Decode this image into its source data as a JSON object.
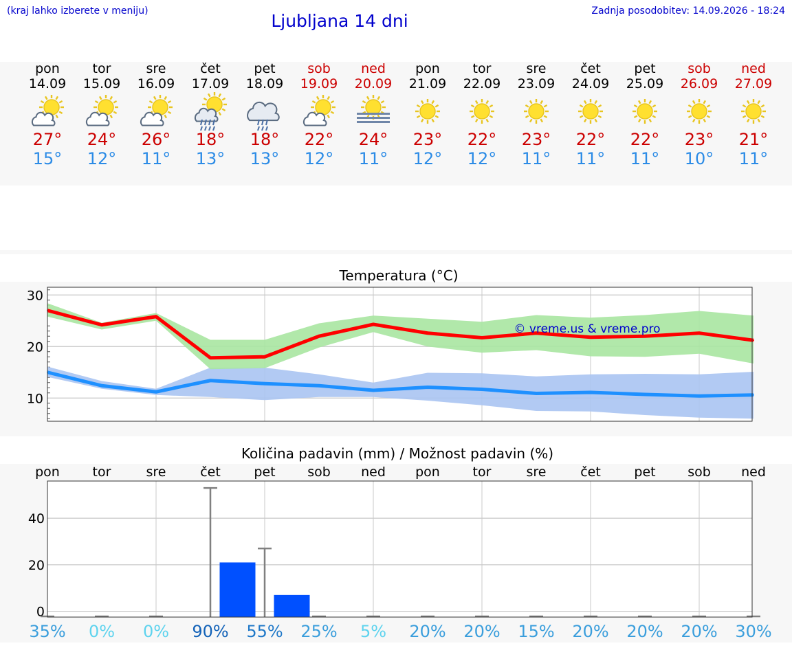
{
  "header": {
    "left_note": "(kraj lahko izberete v meniju)",
    "title": "Ljubljana 14 dni",
    "updated": "Zadnja posodobitev: 14.09.2026 - 18:24"
  },
  "colors": {
    "link_blue": "#0000cc",
    "weekend_red": "#cc0000",
    "tmax_red": "#cc0000",
    "tmin_blue": "#2b8be6",
    "max_line": "#ff0000",
    "max_band": "#a8e6a1",
    "min_line": "#1e90ff",
    "min_band": "#aac4f2",
    "rain_bar": "#0050ff"
  },
  "days": [
    {
      "name": "pon",
      "date": "14.09",
      "weekend": false,
      "icon": "partly-cloudy-icon",
      "tmax": "27°",
      "tmin": "15°"
    },
    {
      "name": "tor",
      "date": "15.09",
      "weekend": false,
      "icon": "partly-cloudy-icon",
      "tmax": "24°",
      "tmin": "12°"
    },
    {
      "name": "sre",
      "date": "16.09",
      "weekend": false,
      "icon": "partly-cloudy-icon",
      "tmax": "26°",
      "tmin": "11°"
    },
    {
      "name": "čet",
      "date": "17.09",
      "weekend": false,
      "icon": "sun-rain-icon",
      "tmax": "18°",
      "tmin": "13°"
    },
    {
      "name": "pet",
      "date": "18.09",
      "weekend": false,
      "icon": "cloud-rain-icon",
      "tmax": "18°",
      "tmin": "13°"
    },
    {
      "name": "sob",
      "date": "19.09",
      "weekend": true,
      "icon": "partly-cloudy-icon",
      "tmax": "22°",
      "tmin": "12°"
    },
    {
      "name": "ned",
      "date": "20.09",
      "weekend": true,
      "icon": "sun-fog-icon",
      "tmax": "24°",
      "tmin": "11°"
    },
    {
      "name": "pon",
      "date": "21.09",
      "weekend": false,
      "icon": "sun-icon",
      "tmax": "23°",
      "tmin": "12°"
    },
    {
      "name": "tor",
      "date": "22.09",
      "weekend": false,
      "icon": "sun-icon",
      "tmax": "22°",
      "tmin": "12°"
    },
    {
      "name": "sre",
      "date": "23.09",
      "weekend": false,
      "icon": "sun-icon",
      "tmax": "23°",
      "tmin": "11°"
    },
    {
      "name": "čet",
      "date": "24.09",
      "weekend": false,
      "icon": "sun-icon",
      "tmax": "22°",
      "tmin": "11°"
    },
    {
      "name": "pet",
      "date": "25.09",
      "weekend": false,
      "icon": "sun-icon",
      "tmax": "22°",
      "tmin": "11°"
    },
    {
      "name": "sob",
      "date": "26.09",
      "weekend": true,
      "icon": "sun-icon",
      "tmax": "23°",
      "tmin": "10°"
    },
    {
      "name": "ned",
      "date": "27.09",
      "weekend": true,
      "icon": "sun-icon",
      "tmax": "21°",
      "tmin": "11°"
    }
  ],
  "chart_data": [
    {
      "type": "line",
      "title": "Temperatura (°C)",
      "watermark": "© vreme.us & vreme.pro",
      "ylim": [
        5.5,
        31.5
      ],
      "yticks": [
        10,
        20,
        30
      ],
      "grid": true,
      "x": [
        "pon",
        "tor",
        "sre",
        "čet",
        "pet",
        "sob",
        "ned",
        "pon",
        "tor",
        "sre",
        "čet",
        "pet",
        "sob",
        "ned"
      ],
      "series": [
        {
          "values": [
            27,
            24.2,
            25.8,
            17.8,
            18,
            22,
            24.3,
            22.6,
            21.7,
            22.6,
            21.8,
            22,
            22.6,
            21.2
          ],
          "band_low": [
            25.8,
            23.3,
            25,
            15.6,
            15.8,
            19.8,
            22.8,
            20,
            18.8,
            19.3,
            18.1,
            18,
            18.6,
            16.7
          ],
          "band_high": [
            28.4,
            24.6,
            26.5,
            21.3,
            21.3,
            24.5,
            26,
            25.4,
            24.8,
            26.1,
            25.6,
            26.1,
            26.9,
            26
          ]
        },
        {
          "values": [
            15,
            12.4,
            11.2,
            13.4,
            12.8,
            12.4,
            11.5,
            12.1,
            11.7,
            10.9,
            11.1,
            10.7,
            10.4,
            10.6
          ],
          "band_low": [
            14.1,
            11.8,
            10.6,
            10.2,
            9.6,
            10.2,
            10.2,
            9.5,
            8.6,
            7.5,
            7.4,
            6.7,
            6.2,
            6
          ],
          "band_high": [
            16.1,
            13.3,
            11.8,
            15.9,
            15.9,
            14.6,
            13,
            14.9,
            14.8,
            14.2,
            14.6,
            14.7,
            14.6,
            15.1
          ]
        }
      ]
    },
    {
      "type": "bar",
      "title": "Količina padavin (mm) / Možnost padavin (%)",
      "categories": [
        "pon",
        "tor",
        "sre",
        "čet",
        "pet",
        "sob",
        "ned",
        "pon",
        "tor",
        "sre",
        "čet",
        "pet",
        "sob",
        "ned"
      ],
      "ylim": [
        -2.5,
        56
      ],
      "yticks": [
        0,
        20,
        40
      ],
      "grid": true,
      "values": [
        0,
        0,
        0,
        21,
        7,
        0,
        0,
        0,
        0,
        0,
        0,
        0,
        0,
        0
      ],
      "error_high": [
        0,
        0,
        0,
        53,
        27,
        0,
        0,
        0,
        0,
        0,
        0,
        0,
        0,
        0
      ],
      "probability": [
        "35%",
        "0%",
        "0%",
        "90%",
        "55%",
        "25%",
        "5%",
        "20%",
        "20%",
        "15%",
        "20%",
        "20%",
        "20%",
        "30%"
      ],
      "probability_colors": [
        "#3a9edc",
        "#5ed3ee",
        "#5ed3ee",
        "#1262b8",
        "#1f78c8",
        "#3a9edc",
        "#5ed3ee",
        "#3a9edc",
        "#3a9edc",
        "#3a9edc",
        "#3a9edc",
        "#3a9edc",
        "#3a9edc",
        "#3a9edc"
      ]
    }
  ]
}
